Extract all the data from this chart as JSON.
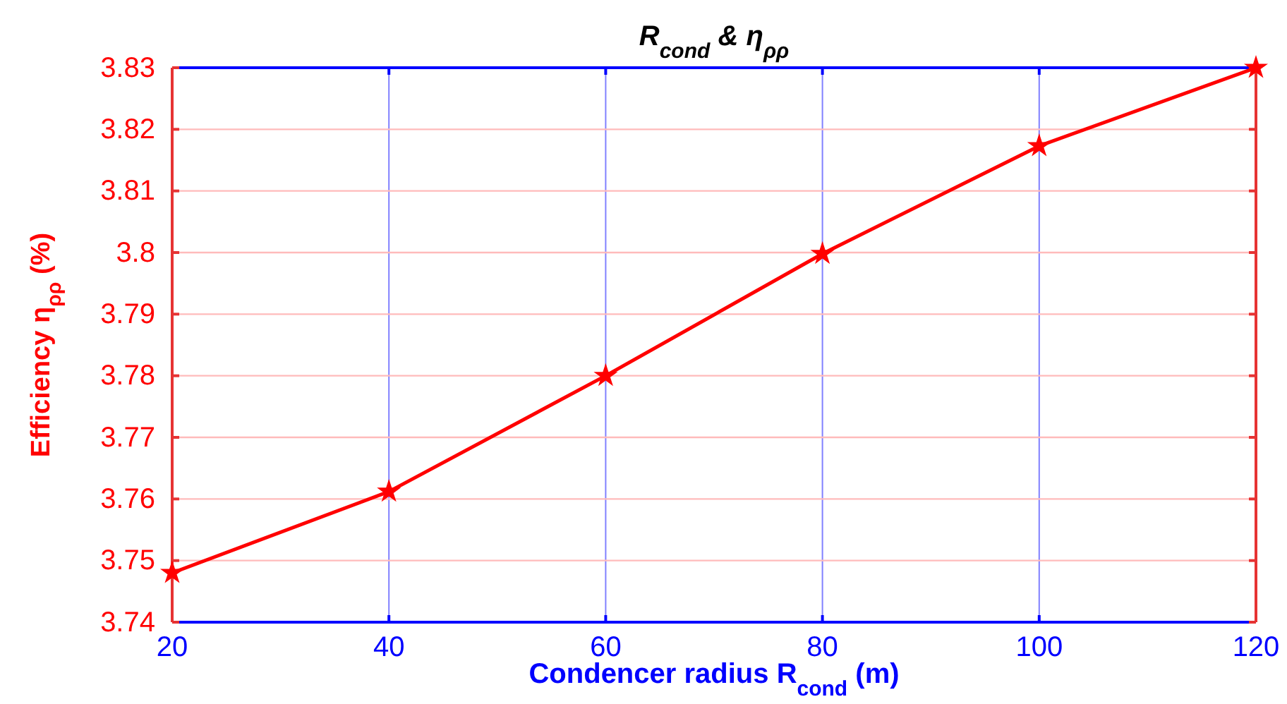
{
  "chart_data": {
    "type": "line",
    "title": "R$_{cond}$ & η$_{ρρ}$",
    "xlabel": "Condencer radius R$_{cond}$ (m)",
    "ylabel": "Efficiency η$_{ρρ}$   (%)",
    "x": [
      20,
      40,
      60,
      80,
      100,
      120
    ],
    "series": [
      {
        "color": "#ff0000",
        "values": [
          3.748,
          3.7612,
          3.78,
          3.7998,
          3.8173,
          3.83
        ]
      }
    ],
    "xlim": [
      20,
      120
    ],
    "xticks": [
      20,
      40,
      60,
      80,
      100,
      120
    ],
    "ylim": [
      3.74,
      3.83
    ],
    "yticks": [
      3.74,
      3.75,
      3.76,
      3.77,
      3.78,
      3.79,
      3.8,
      3.81,
      3.82,
      3.83
    ],
    "grid": true,
    "marker": "star",
    "line_style": "solid"
  }
}
